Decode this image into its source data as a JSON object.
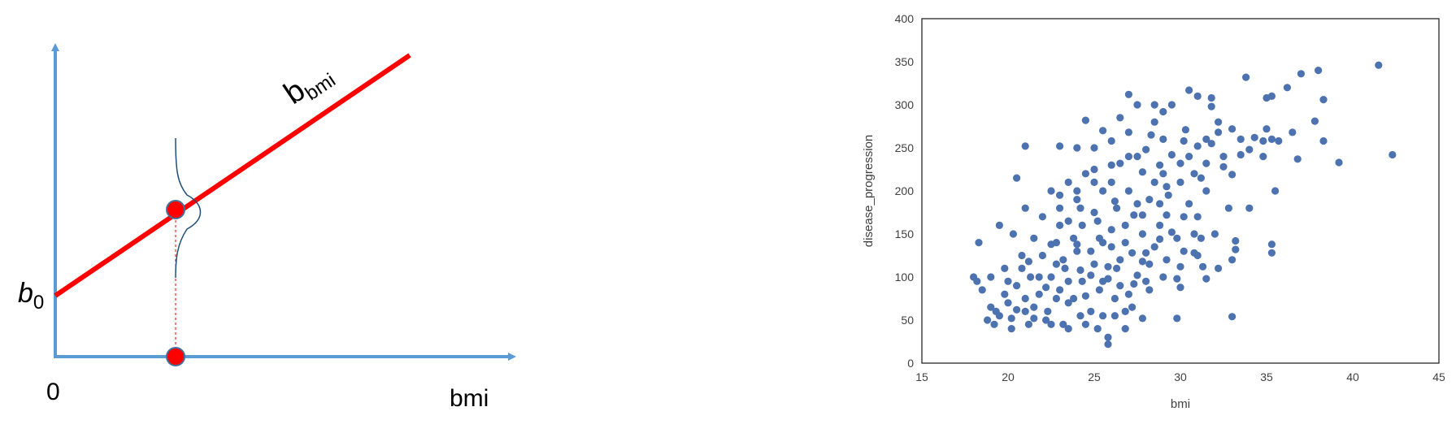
{
  "diagram": {
    "intercept_symbol": "b",
    "intercept_subscript": "0",
    "slope_symbol": "b",
    "slope_subscript": "bmi",
    "origin_label": "0",
    "x_axis_label": "bmi",
    "colors": {
      "axis": "#5b9bd5",
      "regression_line": "#ff0000",
      "point": "#ff0000",
      "point_outline": "#41719c",
      "distribution_curve": "#1f4e79",
      "dashed_guide": "#ff0000"
    }
  },
  "chart_data": {
    "type": "scatter",
    "title": "",
    "xlabel": "bmi",
    "ylabel": "disease_progression",
    "xlim": [
      15,
      45
    ],
    "ylim": [
      0,
      400
    ],
    "xticks": [
      15,
      20,
      25,
      30,
      35,
      40,
      45
    ],
    "yticks": [
      0,
      50,
      100,
      150,
      200,
      250,
      300,
      350,
      400
    ],
    "grid": false,
    "marker_color": "#4c72b0",
    "points": [
      [
        41.5,
        346
      ],
      [
        42.3,
        242
      ],
      [
        39.2,
        233
      ],
      [
        38.0,
        340
      ],
      [
        38.3,
        306
      ],
      [
        38.3,
        258
      ],
      [
        37.8,
        281
      ],
      [
        37.0,
        336
      ],
      [
        36.8,
        237
      ],
      [
        36.2,
        320
      ],
      [
        35.7,
        258
      ],
      [
        35.3,
        310
      ],
      [
        35.0,
        308
      ],
      [
        35.3,
        260
      ],
      [
        35.0,
        272
      ],
      [
        35.5,
        200
      ],
      [
        35.3,
        138
      ],
      [
        35.3,
        128
      ],
      [
        34.8,
        258
      ],
      [
        34.3,
        262
      ],
      [
        34.0,
        248
      ],
      [
        33.8,
        332
      ],
      [
        33.5,
        242
      ],
      [
        33.0,
        219
      ],
      [
        33.2,
        142
      ],
      [
        33.2,
        132
      ],
      [
        33.0,
        272
      ],
      [
        33.0,
        54
      ],
      [
        32.5,
        228
      ],
      [
        32.2,
        280
      ],
      [
        31.8,
        308
      ],
      [
        31.8,
        298
      ],
      [
        31.5,
        260
      ],
      [
        31.5,
        232
      ],
      [
        31.3,
        112
      ],
      [
        31.5,
        98
      ],
      [
        31.0,
        310
      ],
      [
        31.0,
        252
      ],
      [
        31.0,
        170
      ],
      [
        30.8,
        150
      ],
      [
        30.8,
        128
      ],
      [
        30.5,
        317
      ],
      [
        30.3,
        271
      ],
      [
        30.2,
        258
      ],
      [
        30.0,
        232
      ],
      [
        30.0,
        210
      ],
      [
        30.0,
        88
      ],
      [
        29.8,
        52
      ],
      [
        29.8,
        98
      ],
      [
        29.5,
        300
      ],
      [
        29.5,
        242
      ],
      [
        29.3,
        195
      ],
      [
        29.2,
        172
      ],
      [
        29.0,
        292
      ],
      [
        29.0,
        220
      ],
      [
        28.8,
        160
      ],
      [
        28.8,
        144
      ],
      [
        28.5,
        280
      ],
      [
        28.5,
        210
      ],
      [
        28.3,
        265
      ],
      [
        28.2,
        190
      ],
      [
        28.0,
        248
      ],
      [
        28.0,
        128
      ],
      [
        27.8,
        52
      ],
      [
        27.8,
        118
      ],
      [
        27.5,
        300
      ],
      [
        27.5,
        240
      ],
      [
        27.3,
        172
      ],
      [
        27.3,
        92
      ],
      [
        27.0,
        312
      ],
      [
        27.0,
        268
      ],
      [
        27.0,
        200
      ],
      [
        26.8,
        140
      ],
      [
        26.8,
        60
      ],
      [
        26.5,
        285
      ],
      [
        26.5,
        232
      ],
      [
        26.3,
        180
      ],
      [
        26.3,
        110
      ],
      [
        26.0,
        258
      ],
      [
        26.0,
        210
      ],
      [
        26.0,
        155
      ],
      [
        25.8,
        98
      ],
      [
        25.8,
        30
      ],
      [
        25.5,
        270
      ],
      [
        25.5,
        200
      ],
      [
        25.3,
        145
      ],
      [
        25.3,
        85
      ],
      [
        25.0,
        250
      ],
      [
        25.0,
        175
      ],
      [
        25.0,
        115
      ],
      [
        24.8,
        60
      ],
      [
        24.5,
        282
      ],
      [
        24.5,
        220
      ],
      [
        24.3,
        160
      ],
      [
        24.3,
        95
      ],
      [
        24.0,
        250
      ],
      [
        24.0,
        190
      ],
      [
        24.0,
        130
      ],
      [
        23.8,
        75
      ],
      [
        23.5,
        210
      ],
      [
        23.5,
        165
      ],
      [
        23.3,
        110
      ],
      [
        23.0,
        252
      ],
      [
        23.0,
        180
      ],
      [
        23.0,
        85
      ],
      [
        22.8,
        140
      ],
      [
        22.5,
        200
      ],
      [
        22.5,
        100
      ],
      [
        22.3,
        60
      ],
      [
        22.0,
        170
      ],
      [
        22.0,
        125
      ],
      [
        21.8,
        80
      ],
      [
        21.5,
        145
      ],
      [
        21.3,
        100
      ],
      [
        21.0,
        252
      ],
      [
        21.0,
        180
      ],
      [
        21.0,
        60
      ],
      [
        20.8,
        125
      ],
      [
        20.5,
        215
      ],
      [
        20.5,
        90
      ],
      [
        20.3,
        150
      ],
      [
        20.0,
        70
      ],
      [
        19.8,
        110
      ],
      [
        19.5,
        160
      ],
      [
        19.3,
        60
      ],
      [
        19.0,
        100
      ],
      [
        18.8,
        50
      ],
      [
        18.5,
        85
      ],
      [
        18.3,
        140
      ],
      [
        18.0,
        100
      ],
      [
        18.2,
        95
      ],
      [
        19.2,
        45
      ],
      [
        20.2,
        40
      ],
      [
        21.2,
        45
      ],
      [
        22.2,
        50
      ],
      [
        23.2,
        45
      ],
      [
        24.2,
        55
      ],
      [
        25.2,
        40
      ],
      [
        26.2,
        55
      ],
      [
        26.8,
        40
      ],
      [
        25.8,
        22
      ],
      [
        26.2,
        75
      ],
      [
        27.2,
        65
      ],
      [
        28.2,
        85
      ],
      [
        29.2,
        120
      ],
      [
        30.2,
        130
      ],
      [
        31.2,
        145
      ],
      [
        32.2,
        110
      ],
      [
        27.8,
        150
      ],
      [
        28.8,
        185
      ],
      [
        24.8,
        130
      ],
      [
        23.8,
        145
      ],
      [
        22.8,
        115
      ],
      [
        21.8,
        100
      ],
      [
        20.8,
        110
      ],
      [
        19.8,
        80
      ],
      [
        21.5,
        65
      ],
      [
        23.5,
        70
      ],
      [
        24.5,
        78
      ],
      [
        25.5,
        95
      ],
      [
        26.5,
        120
      ],
      [
        27.5,
        102
      ],
      [
        28.5,
        135
      ],
      [
        29.5,
        152
      ],
      [
        30.5,
        185
      ],
      [
        31.5,
        200
      ],
      [
        32.5,
        240
      ],
      [
        29.0,
        260
      ],
      [
        27.8,
        222
      ],
      [
        26.2,
        188
      ],
      [
        25.2,
        165
      ],
      [
        24.0,
        138
      ],
      [
        22.5,
        138
      ],
      [
        21.2,
        118
      ],
      [
        20.0,
        95
      ],
      [
        19.0,
        65
      ],
      [
        22.8,
        75
      ],
      [
        24.2,
        108
      ],
      [
        25.8,
        112
      ],
      [
        27.2,
        128
      ],
      [
        28.2,
        115
      ],
      [
        29.8,
        145
      ],
      [
        30.8,
        220
      ],
      [
        31.8,
        255
      ],
      [
        33.5,
        260
      ],
      [
        34.8,
        240
      ],
      [
        36.5,
        268
      ],
      [
        32.8,
        180
      ],
      [
        30.2,
        170
      ],
      [
        28.8,
        230
      ],
      [
        27.5,
        185
      ],
      [
        26.0,
        135
      ],
      [
        24.8,
        102
      ],
      [
        23.5,
        95
      ],
      [
        22.2,
        88
      ],
      [
        21.0,
        75
      ],
      [
        20.2,
        52
      ],
      [
        23.2,
        120
      ],
      [
        25.5,
        140
      ],
      [
        26.8,
        160
      ],
      [
        27.8,
        172
      ],
      [
        29.2,
        205
      ],
      [
        30.5,
        240
      ],
      [
        31.2,
        215
      ],
      [
        32.2,
        268
      ],
      [
        25.0,
        210
      ],
      [
        24.2,
        180
      ],
      [
        23.0,
        160
      ],
      [
        26.5,
        90
      ],
      [
        27.0,
        80
      ],
      [
        25.5,
        55
      ],
      [
        24.5,
        45
      ],
      [
        23.5,
        40
      ],
      [
        22.5,
        45
      ],
      [
        21.5,
        52
      ],
      [
        20.5,
        62
      ],
      [
        19.5,
        55
      ],
      [
        28.0,
        95
      ],
      [
        29.0,
        100
      ],
      [
        30.0,
        112
      ],
      [
        31.0,
        125
      ],
      [
        32.0,
        150
      ],
      [
        33.0,
        120
      ],
      [
        34.0,
        180
      ],
      [
        28.5,
        300
      ],
      [
        27.0,
        240
      ],
      [
        26.0,
        230
      ],
      [
        25.0,
        225
      ],
      [
        24.0,
        200
      ],
      [
        23.0,
        195
      ]
    ]
  }
}
